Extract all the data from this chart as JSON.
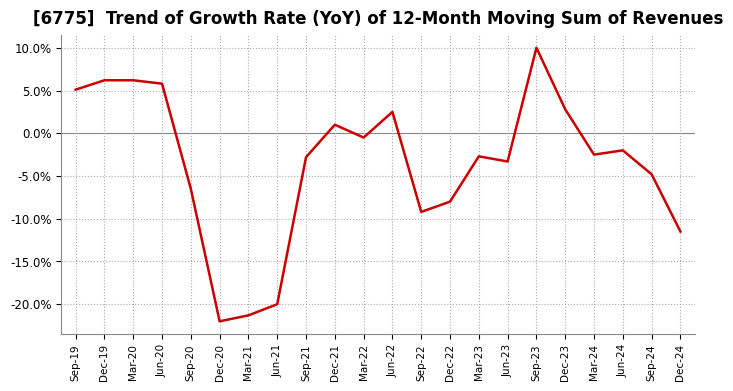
{
  "title": "[6775]  Trend of Growth Rate (YoY) of 12-Month Moving Sum of Revenues",
  "x_labels": [
    "Sep-19",
    "Dec-19",
    "Mar-20",
    "Jun-20",
    "Sep-20",
    "Dec-20",
    "Mar-21",
    "Jun-21",
    "Sep-21",
    "Dec-21",
    "Mar-22",
    "Jun-22",
    "Sep-22",
    "Dec-22",
    "Mar-23",
    "Jun-23",
    "Sep-23",
    "Dec-23",
    "Mar-24",
    "Jun-24",
    "Sep-24",
    "Dec-24"
  ],
  "y_values": [
    0.051,
    0.062,
    0.062,
    0.058,
    -0.065,
    -0.22,
    -0.213,
    -0.2,
    -0.028,
    0.01,
    -0.005,
    0.025,
    -0.092,
    -0.08,
    -0.027,
    -0.033,
    0.1,
    0.028,
    -0.025,
    -0.02,
    -0.048,
    -0.115
  ],
  "line_color": "#cc0000",
  "line_width": 1.8,
  "background_color": "#ffffff",
  "plot_bg_color": "#ffffff",
  "grid_color": "#aaaaaa",
  "grid_color_zero": "#888888",
  "title_fontsize": 12,
  "ylim": [
    -0.235,
    0.115
  ],
  "yticks": [
    0.1,
    0.05,
    0.0,
    -0.05,
    -0.1,
    -0.15,
    -0.2
  ]
}
